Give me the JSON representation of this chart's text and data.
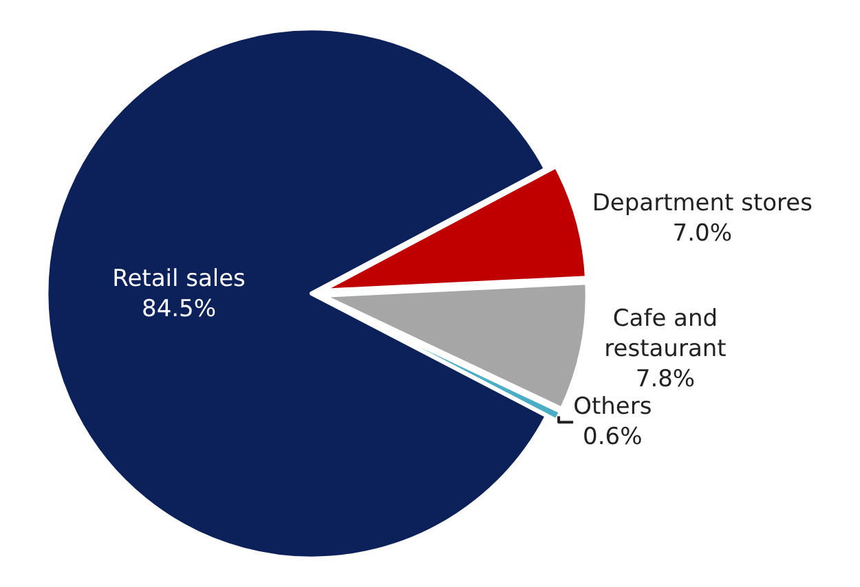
{
  "chart_data": {
    "type": "pie",
    "categories": [
      "Department stores",
      "Cafe and restaurant",
      "Others",
      "Retail sales"
    ],
    "values": [
      7.0,
      7.8,
      0.6,
      84.5
    ],
    "value_labels": [
      "7.0%",
      "7.8%",
      "0.6%",
      "84.5%"
    ],
    "colors": [
      "#c00000",
      "#a6a6a6",
      "#4bacc6",
      "#0c2159"
    ],
    "legend": false
  }
}
